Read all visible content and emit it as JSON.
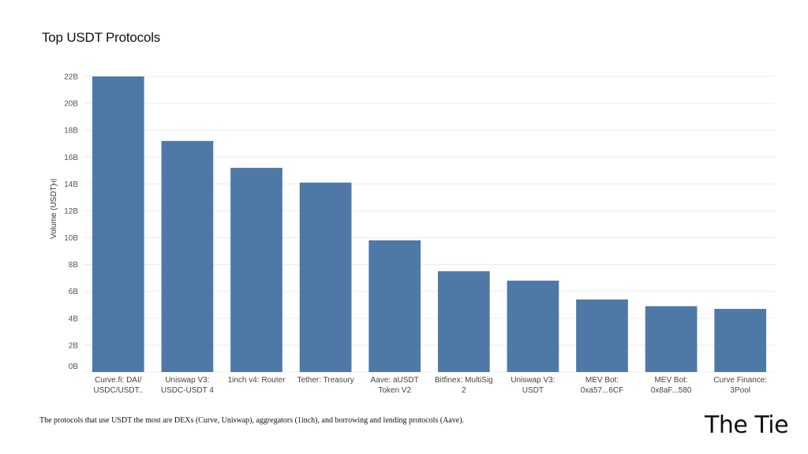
{
  "chart_data": {
    "type": "bar",
    "title": "Top USDT Protocols",
    "xlabel": "",
    "ylabel": "Volume (USDT)",
    "ylim": [
      0,
      22
    ],
    "ytick_values": [
      0,
      2,
      4,
      6,
      8,
      10,
      12,
      14,
      16,
      18,
      20,
      22
    ],
    "ytick_labels": [
      "0B",
      "2B",
      "4B",
      "6B",
      "8B",
      "10B",
      "12B",
      "14B",
      "16B",
      "18B",
      "20B",
      "22B"
    ],
    "categories": [
      [
        "Curve.fi: DAI/",
        "USDC/USDT.."
      ],
      [
        "Uniswap V3:",
        "USDC-USDT 4"
      ],
      [
        "1inch v4: Router"
      ],
      [
        "Tether: Treasury"
      ],
      [
        "Aave: aUSDT",
        "Token V2"
      ],
      [
        "Bitfinex: MultiSig",
        "2"
      ],
      [
        "Uniswap V3:",
        "USDT"
      ],
      [
        "MEV Bot:",
        "0xa57...6CF"
      ],
      [
        "MEV Bot:",
        "0x8aF...580"
      ],
      [
        "Curve Finance:",
        "3Pool"
      ]
    ],
    "values": [
      22.0,
      17.2,
      15.2,
      14.1,
      9.8,
      7.5,
      6.8,
      5.4,
      4.9,
      4.7
    ],
    "value_unit": "B",
    "bar_color": "#4e79a7",
    "grid": true,
    "legend": "none"
  },
  "caption": "The protocols that use USDT the most are DEXs (Curve, Uniswap), aggregators (1inch), and borrowing and lending protocols (Aave).",
  "logo": {
    "text": "The Tie"
  }
}
